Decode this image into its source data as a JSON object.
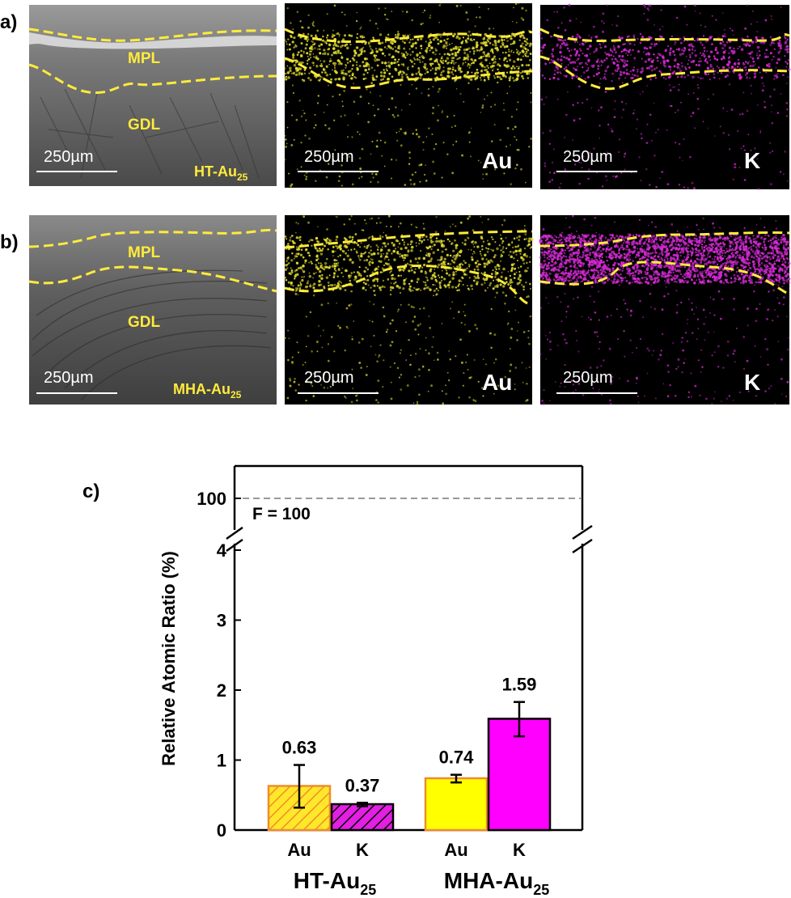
{
  "panel_labels": {
    "a": "a)",
    "b": "b)",
    "c": "c)"
  },
  "micrographs": {
    "scale_bar": "250µm",
    "layer_labels": {
      "mpl": "MPL",
      "gdl": "GDL"
    },
    "element_labels": {
      "au": "Au",
      "k": "K"
    },
    "row_a_sample": {
      "main": "HT-Au",
      "sub": "25"
    },
    "row_b_sample": {
      "main": "MHA-Au",
      "sub": "25"
    },
    "colors": {
      "outline": "#ffeb3b",
      "au_dots": "#e0dc30",
      "k_dots": "#d22ad2",
      "sem_bg": "#6e6e6e"
    }
  },
  "chart_data": {
    "type": "bar",
    "ylabel": "Relative Atomic Ratio (%)",
    "y_ticks_lower": [
      "0",
      "1",
      "2",
      "3",
      "4"
    ],
    "y_tick_upper": "100",
    "ylim_lower": [
      0,
      4
    ],
    "axis_break": true,
    "reference_line": {
      "value": 100,
      "label": "F = 100",
      "color": "#999999"
    },
    "groups": [
      {
        "main": "HT-Au",
        "sub": "25",
        "bars": [
          {
            "category": "Au",
            "value": 0.63,
            "label": "0.63",
            "error_low": 0.32,
            "error_high": 0.93,
            "fill": "#ffe82a",
            "stroke": "#f08c2c",
            "hatched": true
          },
          {
            "category": "K",
            "value": 0.37,
            "label": "0.37",
            "error_low": 0.34,
            "error_high": 0.39,
            "fill": "#e21fe2",
            "stroke": "#000000",
            "hatched": true
          }
        ]
      },
      {
        "main": "MHA-Au",
        "sub": "25",
        "bars": [
          {
            "category": "Au",
            "value": 0.74,
            "label": "0.74",
            "error_low": 0.68,
            "error_high": 0.79,
            "fill": "#ffff00",
            "stroke": "#f08c2c",
            "hatched": false
          },
          {
            "category": "K",
            "value": 1.59,
            "label": "1.59",
            "error_low": 1.34,
            "error_high": 1.83,
            "fill": "#ff00ff",
            "stroke": "#000000",
            "hatched": false
          }
        ]
      }
    ]
  }
}
